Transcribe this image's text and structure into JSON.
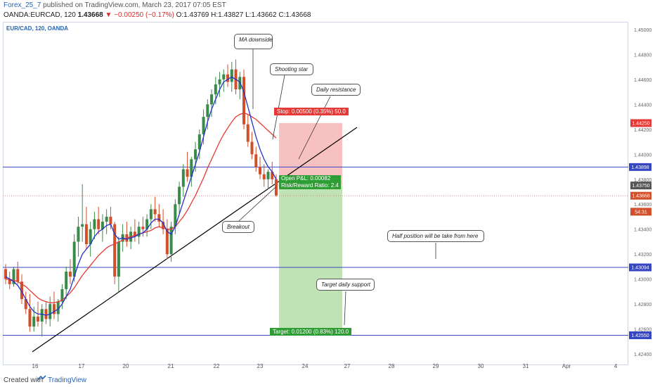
{
  "header": {
    "author": "Forex_25_7",
    "published": "published on TradingView.com, March 23, 2017 07:05 EST",
    "symbol_line": "OANDA:EURCAD, 120",
    "last": "1.43668",
    "change": "▼",
    "change_value": "−0.00250 (−0.17%)",
    "o": "O:1.43769",
    "h": "H:1.43827",
    "l": "L:1.43662",
    "c": "C:1.43668"
  },
  "legend_label": "EUR/CAD, 120, OANDA",
  "footer": {
    "created_with": "Created with",
    "brand": "TradingView"
  },
  "colors": {
    "up": "#3a8a4a",
    "down": "#d14f2a",
    "ma_fast": "#2432c8",
    "ma_slow": "#e53935",
    "level": "#3545c4",
    "trendline": "#000000",
    "stop_zone": "#f8c1c1",
    "target_zone": "#bfe3b5",
    "stop_label": "#e53935",
    "target_label": "#2e9e34"
  },
  "chart_data": {
    "type": "candlestick",
    "ylim": [
      1.4235,
      1.4505
    ],
    "y_ticks": [
      "1.45000",
      "1.44800",
      "1.44600",
      "1.44400",
      "1.44200",
      "1.44000",
      "1.43800",
      "1.43600",
      "1.43400",
      "1.43200",
      "1.43000",
      "1.42800",
      "1.42600",
      "1.42400"
    ],
    "x_ticks": [
      "16",
      "17",
      "20",
      "21",
      "22",
      "23",
      "24",
      "27",
      "28",
      "29",
      "30",
      "31",
      "Apr",
      "4"
    ],
    "candles": [
      [
        1.4308,
        1.4312,
        1.4296,
        1.43
      ],
      [
        1.43,
        1.4306,
        1.4292,
        1.4296
      ],
      [
        1.4296,
        1.431,
        1.4294,
        1.4308
      ],
      [
        1.4308,
        1.4314,
        1.4296,
        1.4298
      ],
      [
        1.4298,
        1.4304,
        1.428,
        1.4284
      ],
      [
        1.4284,
        1.429,
        1.4272,
        1.4276
      ],
      [
        1.4276,
        1.4288,
        1.4258,
        1.4262
      ],
      [
        1.4262,
        1.4278,
        1.4258,
        1.427
      ],
      [
        1.427,
        1.4282,
        1.4262,
        1.4266
      ],
      [
        1.4266,
        1.428,
        1.4254,
        1.4276
      ],
      [
        1.4276,
        1.4282,
        1.4264,
        1.4268
      ],
      [
        1.4268,
        1.4286,
        1.4262,
        1.428
      ],
      [
        1.428,
        1.429,
        1.4268,
        1.4272
      ],
      [
        1.4272,
        1.4284,
        1.4266,
        1.4282
      ],
      [
        1.4282,
        1.4296,
        1.4276,
        1.4292
      ],
      [
        1.4292,
        1.431,
        1.4284,
        1.4306
      ],
      [
        1.4306,
        1.4316,
        1.4296,
        1.4302
      ],
      [
        1.4302,
        1.4336,
        1.4298,
        1.433
      ],
      [
        1.433,
        1.435,
        1.4318,
        1.4342
      ],
      [
        1.4342,
        1.4376,
        1.433,
        1.4344
      ],
      [
        1.4344,
        1.4358,
        1.4324,
        1.4328
      ],
      [
        1.4328,
        1.4346,
        1.4318,
        1.434
      ],
      [
        1.434,
        1.4354,
        1.4332,
        1.4348
      ],
      [
        1.4348,
        1.4358,
        1.4336,
        1.434
      ],
      [
        1.434,
        1.4352,
        1.433,
        1.4346
      ],
      [
        1.4346,
        1.4356,
        1.4336,
        1.435
      ],
      [
        1.435,
        1.4358,
        1.434,
        1.4344
      ],
      [
        1.4344,
        1.4346,
        1.4296,
        1.4302
      ],
      [
        1.4302,
        1.4334,
        1.429,
        1.433
      ],
      [
        1.433,
        1.4344,
        1.4322,
        1.4336
      ],
      [
        1.4336,
        1.4346,
        1.4326,
        1.433
      ],
      [
        1.433,
        1.4342,
        1.4324,
        1.4338
      ],
      [
        1.4338,
        1.4348,
        1.433,
        1.4334
      ],
      [
        1.4334,
        1.4346,
        1.4328,
        1.4342
      ],
      [
        1.4342,
        1.435,
        1.4334,
        1.434
      ],
      [
        1.434,
        1.4352,
        1.4334,
        1.4348
      ],
      [
        1.4348,
        1.436,
        1.434,
        1.4356
      ],
      [
        1.4356,
        1.4366,
        1.4346,
        1.4352
      ],
      [
        1.4352,
        1.436,
        1.4342,
        1.4346
      ],
      [
        1.4346,
        1.4356,
        1.4336,
        1.434
      ],
      [
        1.434,
        1.4348,
        1.4316,
        1.432
      ],
      [
        1.432,
        1.4346,
        1.4314,
        1.4342
      ],
      [
        1.4342,
        1.4364,
        1.4336,
        1.436
      ],
      [
        1.436,
        1.4378,
        1.4352,
        1.4374
      ],
      [
        1.4374,
        1.4392,
        1.4366,
        1.4388
      ],
      [
        1.4388,
        1.4402,
        1.4378,
        1.4382
      ],
      [
        1.4382,
        1.4398,
        1.4374,
        1.4396
      ],
      [
        1.4396,
        1.441,
        1.4386,
        1.4404
      ],
      [
        1.4404,
        1.442,
        1.4396,
        1.4416
      ],
      [
        1.4416,
        1.4436,
        1.4408,
        1.443
      ],
      [
        1.443,
        1.4444,
        1.442,
        1.444
      ],
      [
        1.444,
        1.4452,
        1.443,
        1.4448
      ],
      [
        1.4448,
        1.4462,
        1.444,
        1.4456
      ],
      [
        1.4456,
        1.4466,
        1.4446,
        1.446
      ],
      [
        1.446,
        1.4468,
        1.445,
        1.4464
      ],
      [
        1.4464,
        1.4472,
        1.4454,
        1.4458
      ],
      [
        1.4458,
        1.4474,
        1.445,
        1.4468
      ],
      [
        1.4468,
        1.4476,
        1.4448,
        1.4452
      ],
      [
        1.4452,
        1.4466,
        1.4444,
        1.4462
      ],
      [
        1.4462,
        1.4468,
        1.442,
        1.4424
      ],
      [
        1.4424,
        1.4432,
        1.4406,
        1.441
      ],
      [
        1.441,
        1.4418,
        1.4396,
        1.44
      ],
      [
        1.44,
        1.4406,
        1.4386,
        1.439
      ],
      [
        1.439,
        1.4398,
        1.438,
        1.4384
      ],
      [
        1.4384,
        1.4392,
        1.4374,
        1.438
      ],
      [
        1.438,
        1.4388,
        1.4372,
        1.4386
      ],
      [
        1.4386,
        1.4394,
        1.4376,
        1.438
      ],
      [
        1.438,
        1.4384,
        1.4366,
        1.4367
      ]
    ],
    "ma_fast": [
      1.4302,
      1.43,
      1.4298,
      1.4295,
      1.429,
      1.4284,
      1.4278,
      1.4274,
      1.4272,
      1.4272,
      1.4271,
      1.4272,
      1.4274,
      1.4276,
      1.428,
      1.4286,
      1.4292,
      1.4302,
      1.4312,
      1.432,
      1.4324,
      1.4328,
      1.4334,
      1.4338,
      1.434,
      1.4343,
      1.4344,
      1.4336,
      1.4332,
      1.4333,
      1.4332,
      1.4333,
      1.4334,
      1.4336,
      1.4337,
      1.434,
      1.4345,
      1.4348,
      1.4348,
      1.4345,
      1.4338,
      1.4336,
      1.4342,
      1.4352,
      1.4362,
      1.4372,
      1.4382,
      1.4392,
      1.4402,
      1.4414,
      1.4426,
      1.4436,
      1.4444,
      1.4452,
      1.4458,
      1.446,
      1.4462,
      1.446,
      1.4458,
      1.445,
      1.4438,
      1.4426,
      1.4414,
      1.4404,
      1.4396,
      1.439,
      1.4386,
      1.438
    ],
    "ma_slow": [
      1.43,
      1.43,
      1.4299,
      1.4298,
      1.4296,
      1.4294,
      1.4291,
      1.4288,
      1.4285,
      1.4283,
      1.4282,
      1.4281,
      1.4281,
      1.4282,
      1.4283,
      1.4286,
      1.4289,
      1.4293,
      1.4298,
      1.4303,
      1.4307,
      1.4311,
      1.4315,
      1.4319,
      1.4322,
      1.4325,
      1.4327,
      1.4328,
      1.433,
      1.4331,
      1.4333,
      1.4334,
      1.4335,
      1.4336,
      1.4337,
      1.4338,
      1.4339,
      1.4341,
      1.4342,
      1.4341,
      1.434,
      1.434,
      1.4342,
      1.4346,
      1.435,
      1.4355,
      1.4361,
      1.4367,
      1.4374,
      1.4381,
      1.4389,
      1.4396,
      1.4403,
      1.441,
      1.4416,
      1.4421,
      1.4426,
      1.443,
      1.4432,
      1.4433,
      1.4432,
      1.443,
      1.4428,
      1.4425,
      1.4422,
      1.4419,
      1.4416,
      1.4413
    ],
    "levels": [
      {
        "value": 1.43898,
        "label": "1.43898"
      },
      {
        "value": 1.43094,
        "label": "1.43094"
      },
      {
        "value": 1.4255,
        "label": "1.42550"
      }
    ],
    "price_tags": [
      {
        "value": 1.4425,
        "label": "1.44250",
        "color": "#e53935"
      },
      {
        "value": 1.4375,
        "label": "1.43750",
        "color": "#555555"
      },
      {
        "value": 1.43668,
        "label": "1.43668",
        "color": "#d14f2a"
      },
      {
        "value": 1.4354,
        "label": "54:31",
        "color": "#d14f2a"
      }
    ],
    "position": {
      "entry": 1.4375,
      "stop": 1.4425,
      "target": 1.4255,
      "stop_label": "Stop: 0.00500 (0.35%) 50.0",
      "open_label_1": "Open P&L: 0.00082",
      "open_label_2": "Risk/Reward Ratio: 2.4",
      "target_label": "Target: 0.01200 (0.83%) 120.0"
    },
    "annotations": {
      "ma_downside": "MA downside",
      "shooting_star": "Shooting star",
      "daily_resistance": "Daily resistance",
      "breakout": "Breakout",
      "half_position": "Half position will be take from here",
      "target_support": "Target daily support"
    }
  }
}
